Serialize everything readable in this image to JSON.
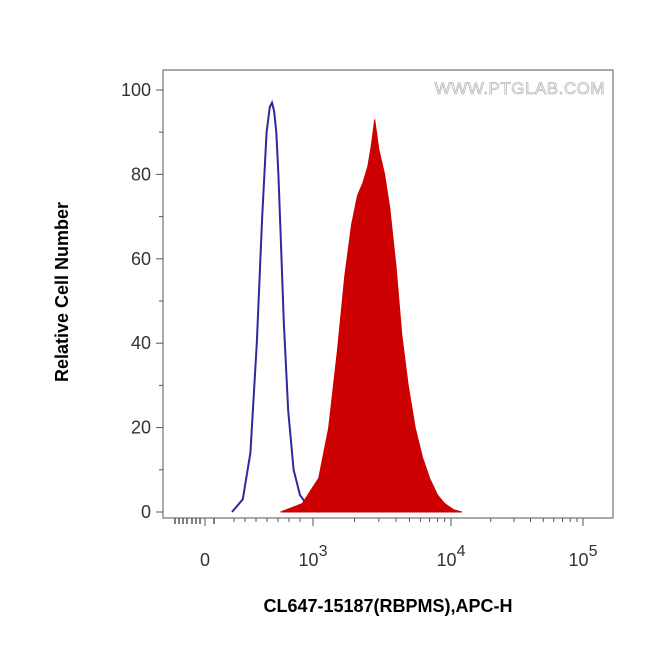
{
  "chart_data": {
    "type": "area",
    "title": "",
    "xlabel": "CL647-15187(RBPMS),APC-H",
    "ylabel": "Relative Cell Number",
    "watermark": "WWW.PTGLAB.COM",
    "x_scale": "biexponential",
    "y_ticks": [
      "0",
      "20",
      "40",
      "60",
      "80",
      "100"
    ],
    "y_tick_values": [
      0,
      20,
      40,
      60,
      80,
      100
    ],
    "ylim": [
      0,
      100
    ],
    "x_ticks": [
      {
        "base": "0",
        "exp": "",
        "value": 0
      },
      {
        "base": "10",
        "exp": "3",
        "value": 1000
      },
      {
        "base": "10",
        "exp": "4",
        "value": 10000
      },
      {
        "base": "10",
        "exp": "5",
        "value": 100000
      }
    ],
    "grid": false,
    "colors": {
      "control": "#2b2b9a",
      "sample": "#cc0000",
      "axis": "#333333"
    },
    "series": [
      {
        "style": "outline",
        "color": "#2b2b9a",
        "x": [
          250,
          350,
          420,
          480,
          530,
          570,
          600,
          620,
          640,
          660,
          680,
          700,
          730,
          770,
          820,
          880,
          950,
          1030,
          1100
        ],
        "y": [
          0,
          3,
          14,
          40,
          70,
          90,
          96,
          97,
          95,
          90,
          80,
          66,
          45,
          24,
          10,
          4,
          1.5,
          0.5,
          0
        ]
      },
      {
        "style": "filled",
        "color": "#cc0000",
        "x": [
          700,
          900,
          1100,
          1300,
          1500,
          1700,
          1900,
          2100,
          2300,
          2500,
          2650,
          2800,
          3000,
          3300,
          3600,
          4000,
          4400,
          4900,
          5500,
          6200,
          7000,
          8000,
          9000,
          10500,
          12000
        ],
        "y": [
          0,
          2,
          8,
          20,
          38,
          56,
          68,
          75,
          78,
          82,
          87,
          93,
          86,
          80,
          72,
          58,
          42,
          30,
          20,
          13,
          8,
          4,
          2,
          0.5,
          0
        ]
      }
    ]
  }
}
